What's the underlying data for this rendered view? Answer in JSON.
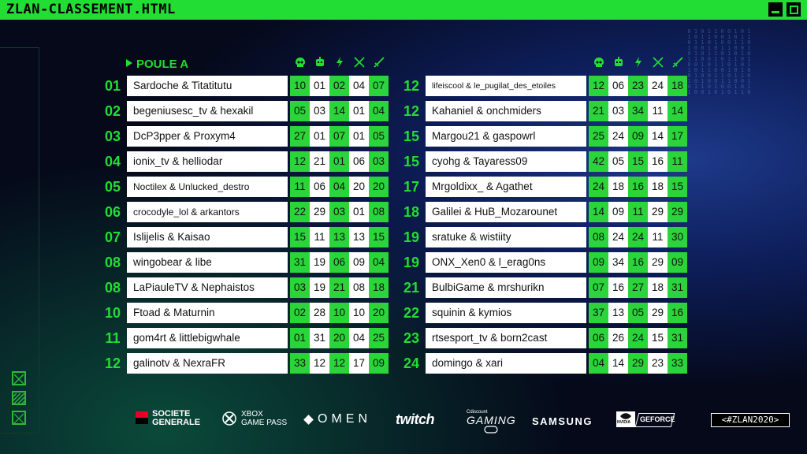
{
  "window": {
    "title": "ZLAN-CLASSEMENT.HTML"
  },
  "poule_label": "POULE A",
  "header_icons": [
    "skull-icon",
    "robot-icon",
    "lightning-icon",
    "crossed-swords-icon",
    "sword-icon"
  ],
  "left_rows": [
    {
      "rank": "01",
      "team": "Sardoche & Titatitutu",
      "scores": [
        "10",
        "01",
        "02",
        "04",
        "07"
      ]
    },
    {
      "rank": "02",
      "team": "begeniusesc_tv & hexakil",
      "scores": [
        "05",
        "03",
        "14",
        "01",
        "04"
      ]
    },
    {
      "rank": "03",
      "team": "DcP3pper & Proxym4",
      "scores": [
        "27",
        "01",
        "07",
        "01",
        "05"
      ]
    },
    {
      "rank": "04",
      "team": "ionix_tv & helliodar",
      "scores": [
        "12",
        "21",
        "01",
        "06",
        "03"
      ]
    },
    {
      "rank": "05",
      "team": "Noctilex & Unlucked_destro",
      "scores": [
        "11",
        "06",
        "04",
        "20",
        "20"
      ]
    },
    {
      "rank": "06",
      "team": "crocodyle_lol & arkantors",
      "scores": [
        "22",
        "29",
        "03",
        "01",
        "08"
      ]
    },
    {
      "rank": "07",
      "team": "Islijelis & Kaisao",
      "scores": [
        "15",
        "11",
        "13",
        "13",
        "15"
      ]
    },
    {
      "rank": "08",
      "team": "wingobear & libe",
      "scores": [
        "31",
        "19",
        "06",
        "09",
        "04"
      ]
    },
    {
      "rank": "08",
      "team": "LaPiauleTV & Nephaistos",
      "scores": [
        "03",
        "19",
        "21",
        "08",
        "18"
      ]
    },
    {
      "rank": "10",
      "team": "Ftoad & Maturnin",
      "scores": [
        "02",
        "28",
        "10",
        "10",
        "20"
      ]
    },
    {
      "rank": "11",
      "team": "gom4rt & littlebigwhale",
      "scores": [
        "01",
        "31",
        "20",
        "04",
        "25"
      ]
    },
    {
      "rank": "12",
      "team": "galinotv & NexraFR",
      "scores": [
        "33",
        "12",
        "12",
        "17",
        "09"
      ]
    }
  ],
  "right_rows": [
    {
      "rank": "12",
      "team": "lifeiscool & le_pugilat_des_etoiles",
      "scores": [
        "12",
        "06",
        "23",
        "24",
        "18"
      ]
    },
    {
      "rank": "12",
      "team": "Kahaniel & onchmiders",
      "scores": [
        "21",
        "03",
        "34",
        "11",
        "14"
      ]
    },
    {
      "rank": "15",
      "team": "Margou21 & gaspowrl",
      "scores": [
        "25",
        "24",
        "09",
        "14",
        "17"
      ]
    },
    {
      "rank": "15",
      "team": "cyohg & Tayaress09",
      "scores": [
        "42",
        "05",
        "15",
        "16",
        "11"
      ]
    },
    {
      "rank": "17",
      "team": "Mrgoldixx_ & Agathet",
      "scores": [
        "24",
        "18",
        "16",
        "18",
        "15"
      ]
    },
    {
      "rank": "18",
      "team": "Galilei & HuB_Mozarounet",
      "scores": [
        "14",
        "09",
        "11",
        "29",
        "29"
      ]
    },
    {
      "rank": "19",
      "team": "sratuke & wistiity",
      "scores": [
        "08",
        "24",
        "24",
        "11",
        "30"
      ]
    },
    {
      "rank": "19",
      "team": "ONX_Xen0 & l_erag0ns",
      "scores": [
        "09",
        "34",
        "16",
        "29",
        "09"
      ]
    },
    {
      "rank": "21",
      "team": "BulbiGame & mrshurikn",
      "scores": [
        "07",
        "16",
        "27",
        "18",
        "31"
      ]
    },
    {
      "rank": "22",
      "team": "squinin & kymios",
      "scores": [
        "37",
        "13",
        "05",
        "29",
        "16"
      ]
    },
    {
      "rank": "23",
      "team": "rtsesport_tv & born2cast",
      "scores": [
        "06",
        "26",
        "24",
        "15",
        "31"
      ]
    },
    {
      "rank": "24",
      "team": "domingo & xari",
      "scores": [
        "04",
        "14",
        "29",
        "23",
        "33"
      ]
    }
  ],
  "sponsors": {
    "sg_line1": "SOCIETE",
    "sg_line2": "GENERALE",
    "xbox_line1": "XBOX",
    "xbox_line2": "GAME PASS",
    "omen": "OMEN",
    "twitch": "twitch",
    "cdisc_small": "Cdiscount",
    "cdisc_big": "GAMING",
    "samsung": "SAMSUNG",
    "nvidia": "NVIDIA",
    "geforce": "GEFORCE"
  },
  "hashtag": "<#ZLAN2020>",
  "colors": {
    "accent": "#22dd33",
    "cell_green": "#2ad43a",
    "background": "#05091a"
  }
}
